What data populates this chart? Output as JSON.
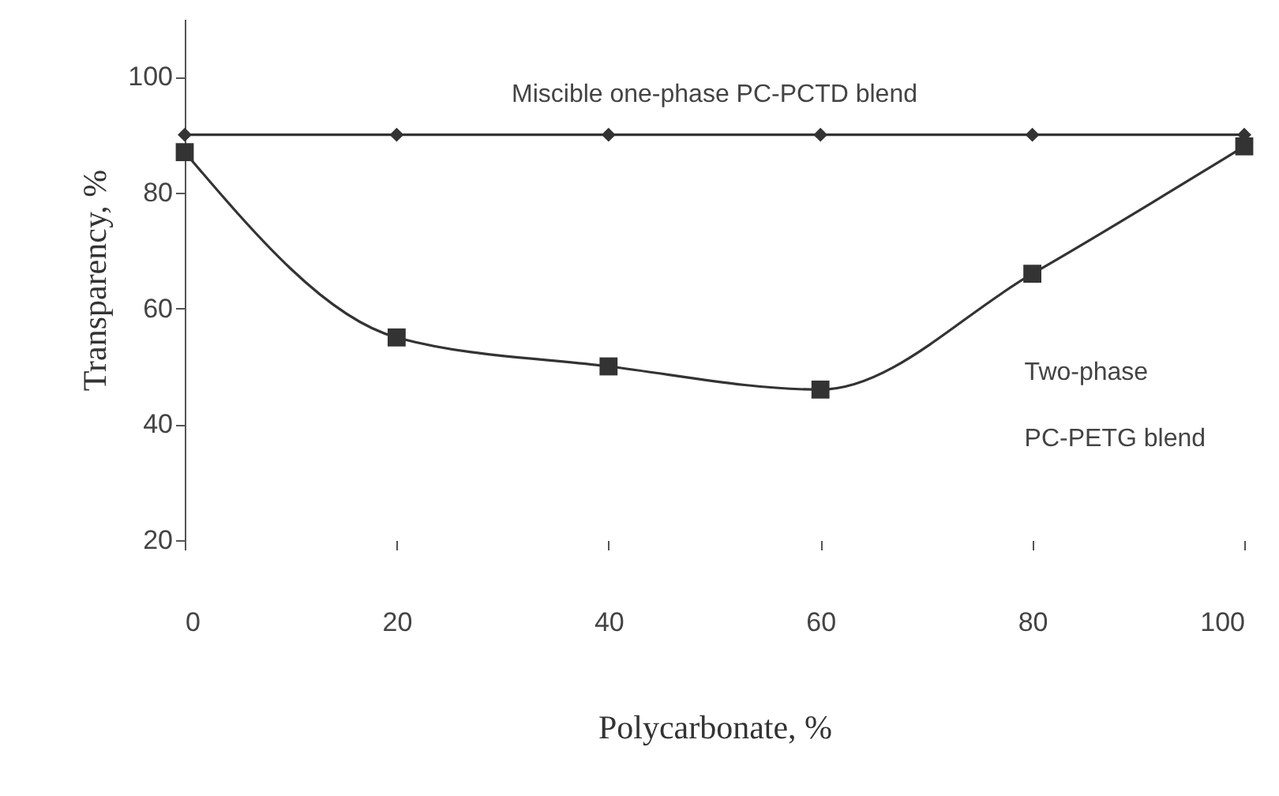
{
  "chart_data": {
    "type": "line",
    "xlabel": "Polycarbonate, %",
    "ylabel": "Transparency, %",
    "x": [
      0,
      20,
      40,
      60,
      80,
      100
    ],
    "series": [
      {
        "name": "Miscible one-phase PC-PCTD blend",
        "color": "#333333",
        "marker": "diamond",
        "values": [
          90,
          90,
          90,
          90,
          90,
          90
        ]
      },
      {
        "name": "Two-phase PC-PETG blend",
        "color": "#333333",
        "marker": "square",
        "values": [
          87,
          55,
          50,
          46,
          66,
          88
        ]
      }
    ],
    "xlim": [
      0,
      100
    ],
    "xticks": [
      0,
      20,
      40,
      60,
      80,
      100
    ],
    "ylim": [
      20,
      110
    ],
    "yticks": [
      20,
      40,
      60,
      80,
      100
    ]
  }
}
